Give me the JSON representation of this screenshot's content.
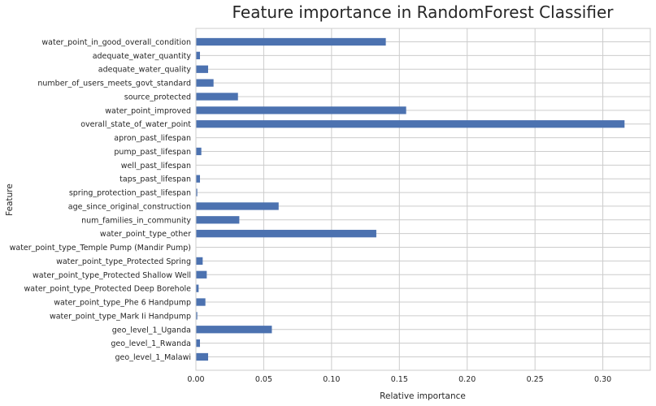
{
  "chart_data": {
    "type": "bar",
    "orientation": "horizontal",
    "title": "Feature importance in RandomForest Classifier",
    "xlabel": "Relative importance",
    "ylabel": "Feature",
    "xlim": [
      0,
      0.335
    ],
    "xticks": [
      0.0,
      0.05,
      0.1,
      0.15,
      0.2,
      0.25,
      0.3
    ],
    "xtick_labels": [
      "0.00",
      "0.05",
      "0.10",
      "0.15",
      "0.20",
      "0.25",
      "0.30"
    ],
    "grid": true,
    "bar_color": "#4c72b0",
    "categories": [
      "water_point_in_good_overall_condition",
      "adequate_water_quantity",
      "adequate_water_quality",
      "number_of_users_meets_govt_standard",
      "source_protected",
      "water_point_improved",
      "overall_state_of_water_point",
      "apron_past_lifespan",
      "pump_past_lifespan",
      "well_past_lifespan",
      "taps_past_lifespan",
      "spring_protection_past_lifespan",
      "age_since_original_construction",
      "num_families_in_community",
      "water_point_type_other",
      "water_point_type_Temple Pump (Mandir Pump)",
      "water_point_type_Protected Spring",
      "water_point_type_Protected Shallow Well",
      "water_point_type_Protected Deep Borehole",
      "water_point_type_Phe 6 Handpump",
      "water_point_type_Mark Ii Handpump",
      "geo_level_1_Uganda",
      "geo_level_1_Rwanda",
      "geo_level_1_Malawi"
    ],
    "values": [
      0.14,
      0.003,
      0.009,
      0.013,
      0.031,
      0.155,
      0.316,
      0.0,
      0.004,
      0.0,
      0.003,
      0.001,
      0.061,
      0.032,
      0.133,
      0.0,
      0.005,
      0.008,
      0.002,
      0.007,
      0.001,
      0.056,
      0.003,
      0.009
    ]
  }
}
